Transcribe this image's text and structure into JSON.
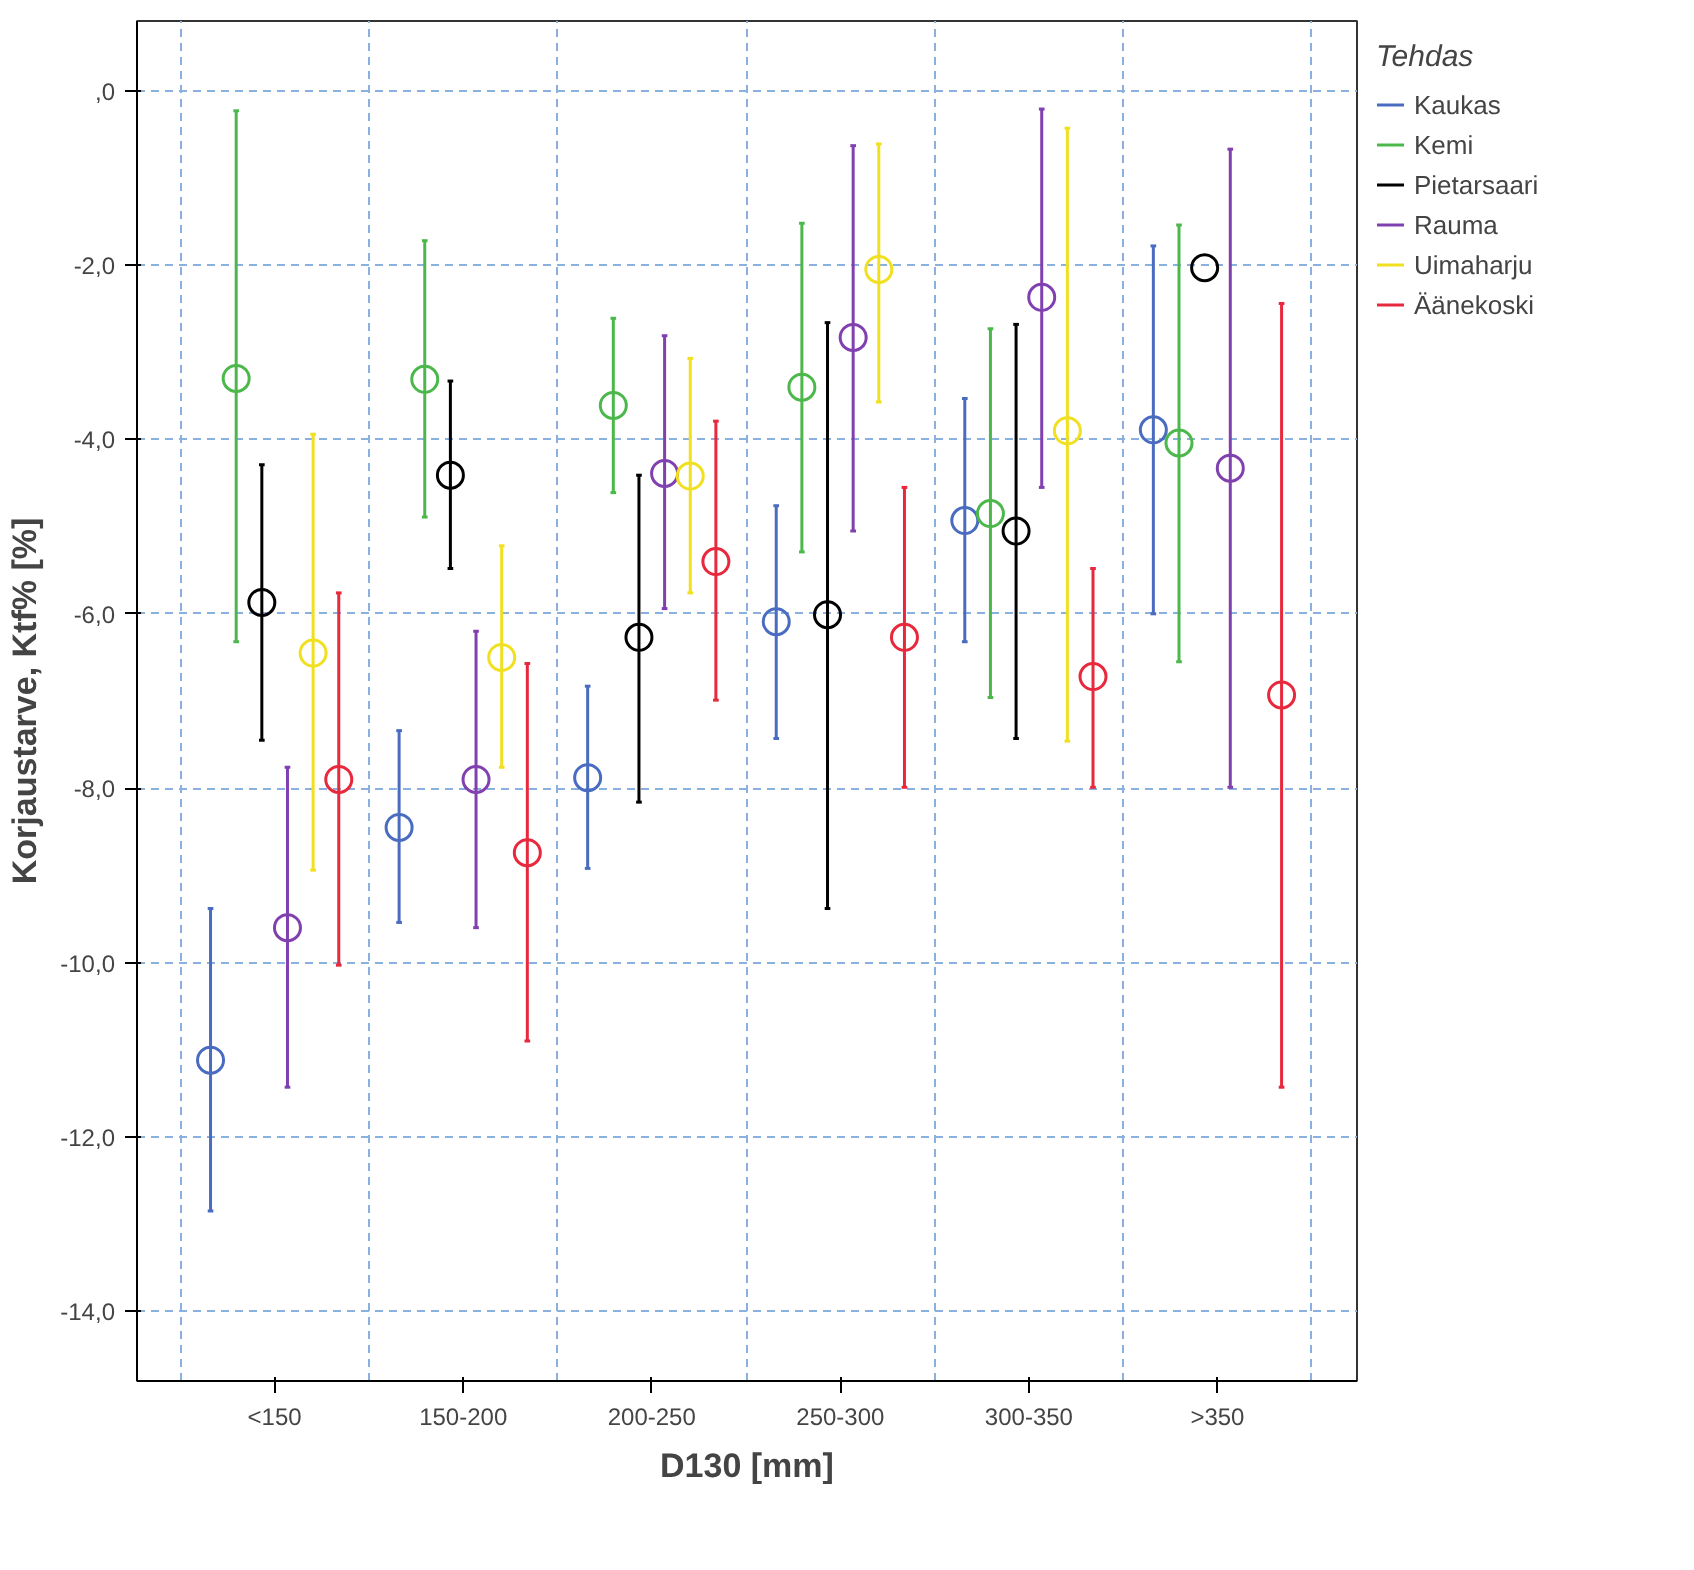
{
  "chart_data": {
    "type": "scatter",
    "xlabel": "D130 [mm]",
    "ylabel": "Korjaustarve, Ktf% [%]",
    "legend_title": "Tehdas",
    "categories": [
      "<150",
      "150-200",
      "200-250",
      "250-300",
      "300-350",
      ">350"
    ],
    "series": [
      {
        "name": "Kaukas",
        "color": "#4a6cc0",
        "values": [
          -11.12,
          -8.45,
          -7.88,
          -6.09,
          -4.93,
          -3.89
        ],
        "errors": [
          [
            -12.85,
            -9.38
          ],
          [
            -9.54,
            -7.34
          ],
          [
            -8.92,
            -6.83
          ],
          [
            -7.43,
            -4.76
          ],
          [
            -6.32,
            -3.53
          ],
          [
            -6.0,
            -1.78
          ]
        ]
      },
      {
        "name": "Kemi",
        "color": "#4cb84c",
        "values": [
          -3.3,
          -3.31,
          -3.61,
          -3.4,
          -4.85,
          -4.04
        ],
        "errors": [
          [
            -6.32,
            -0.23
          ],
          [
            -4.89,
            -1.72
          ],
          [
            -4.61,
            -2.61
          ],
          [
            -5.29,
            -1.52
          ],
          [
            -6.96,
            -2.73
          ],
          [
            -6.55,
            -1.54
          ]
        ]
      },
      {
        "name": "Pietarsaari",
        "color": "#000000",
        "values": [
          -5.87,
          -4.41,
          -6.27,
          -6.01,
          -5.05,
          -2.03
        ],
        "errors": [
          [
            -7.45,
            -4.29
          ],
          [
            -5.48,
            -3.33
          ],
          [
            -8.16,
            -4.41
          ],
          [
            -9.38,
            -2.66
          ],
          [
            -7.43,
            -2.68
          ],
          null
        ]
      },
      {
        "name": "Rauma",
        "color": "#8040b0",
        "values": [
          -9.6,
          -7.9,
          -4.39,
          -2.83,
          -2.37,
          -4.33
        ],
        "errors": [
          [
            -11.43,
            -7.76
          ],
          [
            -9.6,
            -6.2
          ],
          [
            -5.94,
            -2.81
          ],
          [
            -5.05,
            -0.63
          ],
          [
            -4.55,
            -0.21
          ],
          [
            -7.99,
            -0.67
          ]
        ]
      },
      {
        "name": "Uimaharju",
        "color": "#f0e020",
        "values": [
          -6.45,
          -6.5,
          -4.42,
          -2.05,
          -3.9,
          null
        ],
        "errors": [
          [
            -8.94,
            -3.94
          ],
          [
            -7.76,
            -5.22
          ],
          [
            -5.76,
            -3.07
          ],
          [
            -3.57,
            -0.61
          ],
          [
            -7.46,
            -0.43
          ],
          null
        ]
      },
      {
        "name": "Äänekoski",
        "color": "#e8283c",
        "values": [
          -7.9,
          -8.74,
          -5.4,
          -6.27,
          -6.72,
          -6.93
        ],
        "errors": [
          [
            -10.03,
            -5.76
          ],
          [
            -10.9,
            -6.57
          ],
          [
            -6.99,
            -3.79
          ],
          [
            -7.99,
            -4.55
          ],
          [
            -7.99,
            -5.48
          ],
          [
            -11.43,
            -2.44
          ]
        ]
      }
    ],
    "ylim": [
      -14.8,
      0.8
    ],
    "yticks": [
      {
        "value": 0,
        "label": ",0"
      },
      {
        "value": -2,
        "label": "-2,0"
      },
      {
        "value": -4,
        "label": "-4,0"
      },
      {
        "value": -6,
        "label": "-6,0"
      },
      {
        "value": -8,
        "label": "-8,0"
      },
      {
        "value": -10,
        "label": "-10,0"
      },
      {
        "value": -12,
        "label": "-12,0"
      },
      {
        "value": -14,
        "label": "-14,0"
      }
    ],
    "grid": true,
    "legend": "top right",
    "marker": "circle"
  }
}
